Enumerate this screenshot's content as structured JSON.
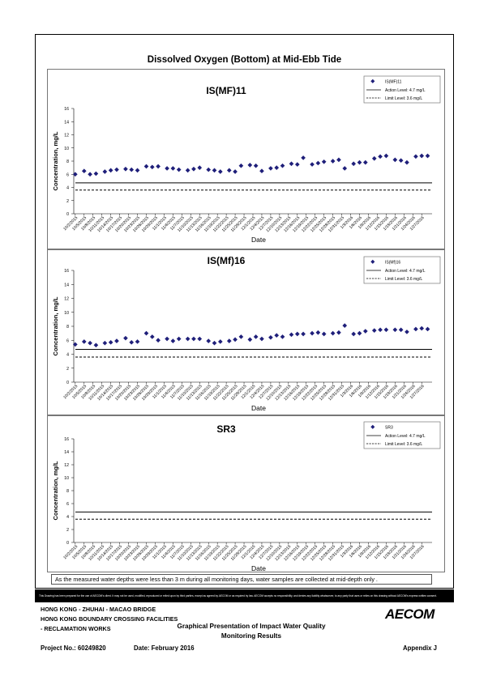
{
  "page_title": "Dissolved Oxygen (Bottom) at Mid-Ebb Tide",
  "x_dates": [
    "10/2/2015",
    "10/5/2015",
    "10/8/2015",
    "10/11/2015",
    "10/14/2015",
    "10/17/2015",
    "10/20/2015",
    "10/23/2015",
    "10/26/2015",
    "10/29/2015",
    "11/1/2015",
    "11/4/2015",
    "11/7/2015",
    "11/10/2015",
    "11/13/2015",
    "11/16/2015",
    "11/19/2015",
    "11/22/2015",
    "11/25/2015",
    "11/28/2015",
    "12/1/2015",
    "12/4/2015",
    "12/7/2015",
    "12/10/2015",
    "12/13/2015",
    "12/16/2015",
    "12/19/2015",
    "12/22/2015",
    "12/25/2015",
    "12/28/2015",
    "12/31/2015",
    "1/3/2016",
    "1/6/2016",
    "1/9/2016",
    "1/12/2016",
    "1/15/2016",
    "1/18/2016",
    "1/21/2016",
    "1/24/2016",
    "1/27/2016"
  ],
  "chart_data": [
    {
      "type": "scatter",
      "title": "IS(MF)11",
      "xlabel": "Date",
      "ylabel": "Concentration, mg/L",
      "ylim": [
        0,
        16
      ],
      "y_ticks": [
        "0",
        "2",
        "4",
        "6",
        "8",
        "10",
        "12",
        "14",
        "16"
      ],
      "legend": {
        "position": "top-right",
        "series": "IS(MF)11",
        "action": "Action Level: 4.7 mg/L",
        "limit": "Limit Level: 3.6 mg/L"
      },
      "action_level": 4.7,
      "limit_level": 3.6,
      "series": [
        {
          "name": "IS(MF)11",
          "color": "#1f1f7a",
          "x": [
            "10/2/2015",
            "10/5/2015",
            "10/7/2015",
            "10/9/2015",
            "10/12/2015",
            "10/14/2015",
            "10/16/2015",
            "10/19/2015",
            "10/21/2015",
            "10/23/2015",
            "10/26/2015",
            "10/28/2015",
            "10/30/2015",
            "11/2/2015",
            "11/4/2015",
            "11/6/2015",
            "11/9/2015",
            "11/11/2015",
            "11/13/2015",
            "11/16/2015",
            "11/18/2015",
            "11/20/2015",
            "11/23/2015",
            "11/25/2015",
            "11/27/2015",
            "11/30/2015",
            "12/2/2015",
            "12/4/2015",
            "12/7/2015",
            "12/9/2015",
            "12/11/2015",
            "12/14/2015",
            "12/16/2015",
            "12/18/2015",
            "12/21/2015",
            "12/23/2015",
            "12/25/2015",
            "12/28/2015",
            "12/30/2015",
            "1/1/2016",
            "1/4/2016",
            "1/6/2016",
            "1/8/2016",
            "1/11/2016",
            "1/13/2016",
            "1/15/2016",
            "1/18/2016",
            "1/20/2016",
            "1/22/2016",
            "1/25/2016",
            "1/27/2016",
            "1/29/2016"
          ],
          "y": [
            6.0,
            6.5,
            6.0,
            6.1,
            6.4,
            6.6,
            6.7,
            6.8,
            6.7,
            6.6,
            7.2,
            7.1,
            7.2,
            6.9,
            6.9,
            6.7,
            6.6,
            6.8,
            7.0,
            6.7,
            6.6,
            6.4,
            6.6,
            6.4,
            7.3,
            7.4,
            7.3,
            6.5,
            6.9,
            7.0,
            7.3,
            7.6,
            7.5,
            8.5,
            7.5,
            7.7,
            7.9,
            8.0,
            8.2,
            6.9,
            7.6,
            7.8,
            7.8,
            8.4,
            8.7,
            8.8,
            8.2,
            8.1,
            7.8,
            8.7,
            8.8,
            8.8
          ]
        }
      ]
    },
    {
      "type": "scatter",
      "title": "IS(Mf)16",
      "xlabel": "Date",
      "ylabel": "Concentration, mg/L",
      "ylim": [
        0,
        16
      ],
      "y_ticks": [
        "0",
        "2",
        "4",
        "6",
        "8",
        "10",
        "12",
        "14",
        "16"
      ],
      "legend": {
        "position": "top-right",
        "series": "IS(Mf)16",
        "action": "Action Level: 4.7 mg/L",
        "limit": "Limit Level: 3.6 mg/L"
      },
      "action_level": 4.7,
      "limit_level": 3.6,
      "series": [
        {
          "name": "IS(Mf)16",
          "color": "#1f1f7a",
          "x": [
            "10/2/2015",
            "10/5/2015",
            "10/7/2015",
            "10/9/2015",
            "10/12/2015",
            "10/14/2015",
            "10/16/2015",
            "10/19/2015",
            "10/21/2015",
            "10/23/2015",
            "10/26/2015",
            "10/28/2015",
            "10/30/2015",
            "11/2/2015",
            "11/4/2015",
            "11/6/2015",
            "11/9/2015",
            "11/11/2015",
            "11/13/2015",
            "11/16/2015",
            "11/18/2015",
            "11/20/2015",
            "11/23/2015",
            "11/25/2015",
            "11/27/2015",
            "11/30/2015",
            "12/2/2015",
            "12/4/2015",
            "12/7/2015",
            "12/9/2015",
            "12/11/2015",
            "12/14/2015",
            "12/16/2015",
            "12/18/2015",
            "12/21/2015",
            "12/23/2015",
            "12/25/2015",
            "12/28/2015",
            "12/30/2015",
            "1/1/2016",
            "1/4/2016",
            "1/6/2016",
            "1/8/2016",
            "1/11/2016",
            "1/13/2016",
            "1/15/2016",
            "1/18/2016",
            "1/20/2016",
            "1/22/2016",
            "1/25/2016",
            "1/27/2016",
            "1/29/2016"
          ],
          "y": [
            5.4,
            5.8,
            5.6,
            5.3,
            5.6,
            5.7,
            5.9,
            6.3,
            5.7,
            5.8,
            7.0,
            6.5,
            6.0,
            6.2,
            5.9,
            6.2,
            6.2,
            6.2,
            6.2,
            5.9,
            5.6,
            5.8,
            5.9,
            6.1,
            6.5,
            6.1,
            6.5,
            6.2,
            6.4,
            6.7,
            6.5,
            6.8,
            6.9,
            6.9,
            7.0,
            7.1,
            6.9,
            7.0,
            7.1,
            8.1,
            6.9,
            7.0,
            7.3,
            7.4,
            7.5,
            7.5,
            7.5,
            7.5,
            7.2,
            7.6,
            7.7,
            7.6
          ]
        }
      ]
    },
    {
      "type": "scatter",
      "title": "SR3",
      "xlabel": "Date",
      "ylabel": "Concentration, mg/L",
      "ylim": [
        0,
        16
      ],
      "y_ticks": [
        "0",
        "2",
        "4",
        "6",
        "8",
        "10",
        "12",
        "14",
        "16"
      ],
      "legend": {
        "position": "top-right",
        "series": "SR3",
        "action": "Action Level: 4.7 mg/L",
        "limit": "Limit Level: 3.6 mg/L"
      },
      "action_level": 4.7,
      "limit_level": 3.6,
      "series": [
        {
          "name": "SR3",
          "color": "#1f1f7a",
          "x": [],
          "y": []
        }
      ]
    }
  ],
  "note": "As the measured water depths were less than 3 m during all monitoring days, water samples are collected  at mid-depth only .",
  "disclaimer": "This Drawing has been prepared for the use of AECOM's client. It may not be used, modified, reproduced or relied upon by third parties, except as agreed by AECOM or as required by law. AECOM accepts no responsibility, and denies any liability whatsoever, to any party that uses or relies on this drawing without AECOM's express written consent.",
  "footer": {
    "project_line1": "HONG KONG - ZHUHAI - MACAO BRIDGE",
    "project_line2": "HONG KONG BOUNDARY CROSSING FACILITIES",
    "project_line3": "- RECLAMATION WORKS",
    "center_line1": "Graphical Presentation of Impact Water Quality",
    "center_line2": "Monitoring Results",
    "project_no": "Project No.: 60249820",
    "date": "Date: February 2016",
    "appendix": "Appendix J",
    "logo": "AECOM"
  }
}
